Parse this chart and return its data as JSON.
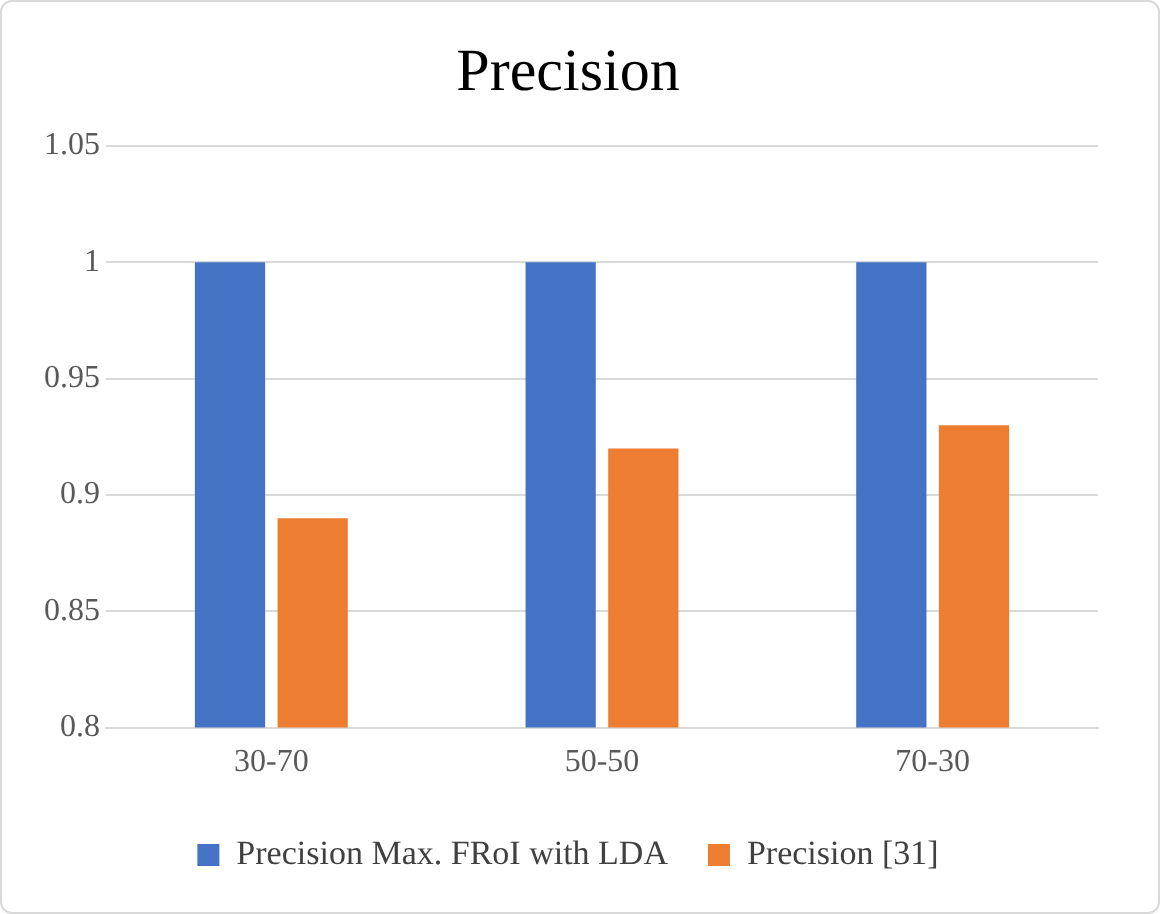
{
  "chart_data": {
    "type": "bar",
    "title": "Precision",
    "categories": [
      "30-70",
      "50-50",
      "70-30"
    ],
    "series": [
      {
        "name": "Precision Max. FRoI with LDA",
        "color": "#4472c4",
        "values": [
          1,
          1,
          1
        ]
      },
      {
        "name": "Precision [31]",
        "color": "#ed7d31",
        "values": [
          0.89,
          0.92,
          0.93
        ]
      }
    ],
    "ylim": [
      0.8,
      1.05
    ],
    "yticks": [
      0.8,
      0.85,
      0.9,
      0.95,
      1,
      1.05
    ],
    "grid": "y",
    "legend": "bottom"
  }
}
